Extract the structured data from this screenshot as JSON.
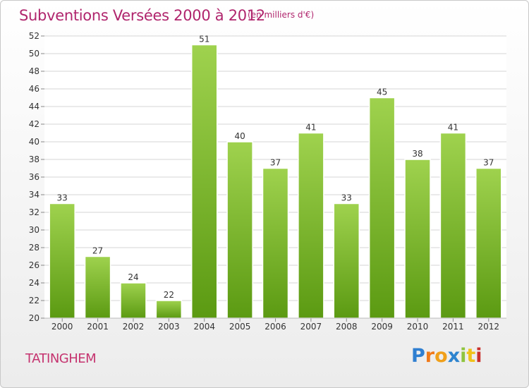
{
  "header": {
    "title": "Subventions Versées 2000 à 2012",
    "unit": "(en milliers d'€)"
  },
  "footer": {
    "commune": "TATINGHEM",
    "logo_letters": [
      "P",
      "r",
      "o",
      "x",
      "i",
      "t",
      "i"
    ],
    "logo_colors": [
      "#2f7fd1",
      "#f07a1a",
      "#f0a01a",
      "#2d84cf",
      "#8fc43f",
      "#f0c21a",
      "#c9302c"
    ]
  },
  "colors": {
    "bar_top": "#9fd24e",
    "bar_bottom": "#5b9a12",
    "grid": "#d5d5d5",
    "axis_text": "#333333",
    "title": "#b0256d"
  },
  "chart_data": {
    "type": "bar",
    "categories": [
      "2000",
      "2001",
      "2002",
      "2003",
      "2004",
      "2005",
      "2006",
      "2007",
      "2008",
      "2009",
      "2010",
      "2011",
      "2012"
    ],
    "values": [
      33,
      27,
      24,
      22,
      51,
      40,
      37,
      41,
      33,
      45,
      38,
      41,
      37
    ],
    "title": "Subventions Versées 2000 à 2012",
    "ylim": [
      20,
      52
    ],
    "yticks": [
      20,
      22,
      24,
      26,
      28,
      30,
      32,
      34,
      36,
      38,
      40,
      42,
      44,
      46,
      48,
      50,
      52
    ],
    "grid": true,
    "data_labels": true
  }
}
